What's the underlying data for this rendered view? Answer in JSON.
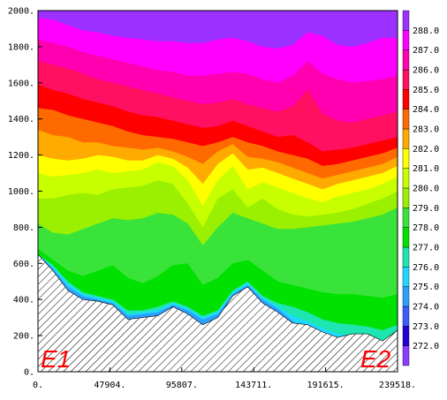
{
  "chart_data": {
    "type": "area",
    "title": "",
    "xlabel": "",
    "ylabel": "",
    "xlim": [
      0,
      239518
    ],
    "ylim": [
      0,
      2000
    ],
    "x_ticks": [
      "0.",
      "47904.",
      "95807.",
      "143711.",
      "191615.",
      "239518."
    ],
    "y_ticks": [
      "0.",
      "200.",
      "400.",
      "600.",
      "800.",
      "1000.",
      "1200.",
      "1400.",
      "1600.",
      "1800.",
      "2000."
    ],
    "x_tick_values": [
      0,
      47904,
      95807,
      143711,
      191615,
      239518
    ],
    "y_tick_values": [
      0,
      200,
      400,
      600,
      800,
      1000,
      1200,
      1400,
      1600,
      1800,
      2000
    ],
    "colorbar": {
      "levels": [
        "272.0",
        "273.0",
        "274.0",
        "275.0",
        "276.0",
        "277.0",
        "278.0",
        "279.0",
        "280.0",
        "281.0",
        "282.0",
        "283.0",
        "284.0",
        "285.0",
        "286.0",
        "287.0",
        "288.0"
      ],
      "colors": [
        "#8a3cff",
        "#2400d8",
        "#3c5cff",
        "#2aa0ff",
        "#20d8ff",
        "#1de6b0",
        "#00e100",
        "#3ae33a",
        "#9af000",
        "#c8ff00",
        "#ffff00",
        "#ffaa00",
        "#ff6a00",
        "#ff0000",
        "#ff1060",
        "#ff00b0",
        "#ff00ff",
        "#9b30ff"
      ]
    },
    "annotations": [
      "E1",
      "E2"
    ],
    "x": [
      0,
      9981,
      19962,
      29943,
      39924,
      49905,
      59886,
      69867,
      79848,
      89829,
      99810,
      109791,
      119772,
      129753,
      139734,
      149715,
      159696,
      169677,
      179658,
      189639,
      199620,
      209601,
      219582,
      229563,
      239518
    ],
    "terrain": [
      650,
      560,
      450,
      400,
      390,
      370,
      290,
      300,
      310,
      360,
      320,
      260,
      300,
      420,
      470,
      380,
      330,
      270,
      260,
      220,
      190,
      210,
      210,
      170,
      230
    ],
    "contours": [
      {
        "level": "275.0",
        "values": [
          650,
          570,
          470,
          420,
          400,
          380,
          310,
          320,
          330,
          370,
          340,
          290,
          320,
          430,
          480,
          400,
          350,
          280,
          240,
          200,
          170,
          150,
          150,
          140,
          180
        ]
      },
      {
        "level": "276.0",
        "values": [
          650,
          580,
          490,
          430,
          410,
          390,
          320,
          330,
          340,
          380,
          350,
          300,
          330,
          440,
          490,
          410,
          360,
          310,
          280,
          240,
          210,
          200,
          190,
          170,
          210
        ]
      },
      {
        "level": "277.0",
        "values": [
          650,
          590,
          500,
          440,
          420,
          400,
          340,
          340,
          360,
          390,
          360,
          310,
          340,
          450,
          500,
          420,
          380,
          360,
          330,
          290,
          270,
          260,
          250,
          230,
          260
        ]
      },
      {
        "level": "278.0",
        "values": [
          680,
          620,
          560,
          530,
          560,
          590,
          520,
          490,
          530,
          590,
          600,
          480,
          520,
          600,
          620,
          560,
          500,
          480,
          460,
          440,
          430,
          430,
          420,
          410,
          430
        ]
      },
      {
        "level": "279.0",
        "values": [
          820,
          770,
          760,
          790,
          820,
          850,
          840,
          850,
          880,
          870,
          820,
          700,
          800,
          880,
          850,
          820,
          790,
          790,
          800,
          810,
          820,
          830,
          850,
          870,
          910
        ]
      },
      {
        "level": "280.0",
        "values": [
          960,
          960,
          980,
          990,
          980,
          1010,
          1020,
          1030,
          1060,
          1040,
          930,
          800,
          960,
          1010,
          910,
          960,
          900,
          870,
          860,
          870,
          880,
          900,
          930,
          960,
          1000
        ]
      },
      {
        "level": "281.0",
        "values": [
          1100,
          1080,
          1090,
          1100,
          1120,
          1100,
          1110,
          1120,
          1160,
          1140,
          1060,
          920,
          1060,
          1140,
          1010,
          1050,
          1020,
          990,
          960,
          940,
          970,
          990,
          1010,
          1040,
          1080
        ]
      },
      {
        "level": "282.0",
        "values": [
          1200,
          1180,
          1170,
          1180,
          1200,
          1190,
          1170,
          1170,
          1200,
          1180,
          1130,
          1040,
          1150,
          1210,
          1120,
          1130,
          1100,
          1070,
          1040,
          1010,
          1040,
          1060,
          1080,
          1100,
          1140
        ]
      },
      {
        "level": "283.0",
        "values": [
          1340,
          1310,
          1300,
          1270,
          1270,
          1250,
          1240,
          1230,
          1240,
          1220,
          1190,
          1150,
          1220,
          1260,
          1190,
          1180,
          1160,
          1130,
          1100,
          1070,
          1090,
          1110,
          1130,
          1150,
          1190
        ]
      },
      {
        "level": "284.0",
        "values": [
          1460,
          1450,
          1420,
          1400,
          1380,
          1360,
          1330,
          1310,
          1300,
          1290,
          1270,
          1250,
          1270,
          1300,
          1270,
          1250,
          1220,
          1200,
          1180,
          1140,
          1150,
          1170,
          1190,
          1210,
          1240
        ]
      },
      {
        "level": "285.0",
        "values": [
          1590,
          1560,
          1540,
          1510,
          1490,
          1470,
          1440,
          1420,
          1410,
          1390,
          1370,
          1350,
          1360,
          1390,
          1360,
          1330,
          1300,
          1310,
          1270,
          1220,
          1230,
          1240,
          1260,
          1280,
          1300
        ]
      },
      {
        "level": "286.0",
        "values": [
          1720,
          1700,
          1680,
          1650,
          1620,
          1600,
          1580,
          1560,
          1540,
          1520,
          1500,
          1480,
          1490,
          1510,
          1480,
          1460,
          1440,
          1470,
          1560,
          1430,
          1390,
          1380,
          1400,
          1420,
          1440
        ]
      },
      {
        "level": "287.0",
        "values": [
          1840,
          1820,
          1800,
          1770,
          1750,
          1730,
          1710,
          1690,
          1670,
          1660,
          1640,
          1640,
          1650,
          1660,
          1650,
          1620,
          1600,
          1640,
          1720,
          1650,
          1620,
          1600,
          1610,
          1620,
          1640
        ]
      },
      {
        "level": "288.0",
        "values": [
          1960,
          1950,
          1920,
          1890,
          1880,
          1860,
          1850,
          1840,
          1830,
          1830,
          1820,
          1820,
          1840,
          1850,
          1830,
          1800,
          1790,
          1810,
          1880,
          1860,
          1810,
          1800,
          1820,
          1850,
          1850
        ]
      }
    ]
  }
}
